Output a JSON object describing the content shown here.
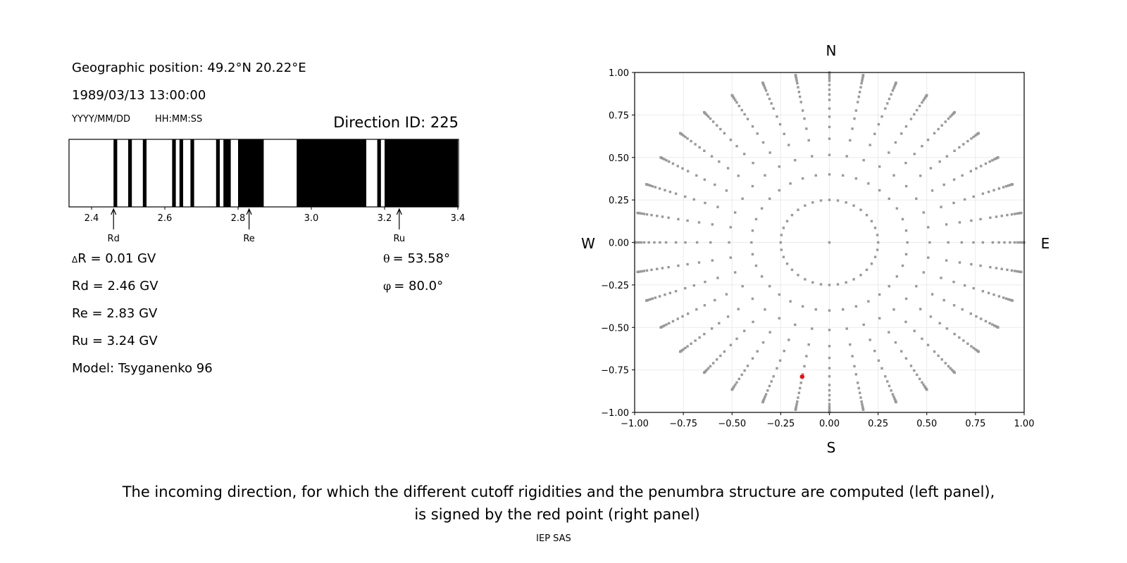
{
  "info": {
    "geo_position": "Geographic position: 49.2°N 20.22°E",
    "datetime": "1989/03/13 13:00:00",
    "date_format": "YYYY/MM/DD",
    "time_format": "HH:MM:SS",
    "direction_id": "Direction ID: 225",
    "delta_r_symbol": "Δ",
    "delta_r": "R = 0.01 GV",
    "rd": "Rd = 2.46 GV",
    "re": "Re = 2.83 GV",
    "ru": "Ru = 3.24 GV",
    "model": "Model: Tsyganenko 96",
    "theta_symbol": "θ",
    "theta": "= 53.58°",
    "phi_symbol": "φ",
    "phi": "= 80.0°"
  },
  "caption": {
    "line1": "The incoming direction, for which the different cutoff rigidities and the penumbra structure are computed (left panel),",
    "line2": "is signed by the red point (right panel)",
    "credit": "IEP SAS"
  },
  "chart_data": [
    {
      "type": "bar",
      "title": "",
      "xlabel": "",
      "xlim": [
        2.34,
        3.4
      ],
      "xticks": [
        "2.4",
        "2.6",
        "2.8",
        "3.0",
        "3.2",
        "3.4"
      ],
      "forbidden_bands_gv": [
        [
          2.46,
          2.47
        ],
        [
          2.5,
          2.51
        ],
        [
          2.54,
          2.55
        ],
        [
          2.62,
          2.63
        ],
        [
          2.64,
          2.65
        ],
        [
          2.67,
          2.68
        ],
        [
          2.74,
          2.75
        ],
        [
          2.76,
          2.78
        ],
        [
          2.8,
          2.87
        ],
        [
          2.96,
          3.15
        ],
        [
          3.18,
          3.19
        ],
        [
          3.2,
          3.4
        ]
      ],
      "markers": [
        {
          "label": "Rd",
          "value": 2.46
        },
        {
          "label": "Re",
          "value": 2.83
        },
        {
          "label": "Ru",
          "value": 3.24
        }
      ],
      "band_color": "#000000"
    },
    {
      "type": "scatter",
      "xlim": [
        -1,
        1
      ],
      "ylim": [
        -1,
        1
      ],
      "xticks": [
        "−1.00",
        "−0.75",
        "−0.50",
        "−0.25",
        "0.00",
        "0.25",
        "0.50",
        "0.75",
        "1.00"
      ],
      "yticks": [
        "−1.00",
        "−0.75",
        "−0.50",
        "−0.25",
        "0.00",
        "0.25",
        "0.50",
        "0.75",
        "1.00"
      ],
      "grid": true,
      "compass": {
        "n": "N",
        "s": "S",
        "e": "E",
        "w": "W"
      },
      "grid_points": {
        "zenith_deg": [
          0,
          14.5,
          23.6,
          31,
          37.6,
          42.8,
          47.7,
          52,
          57,
          60.5,
          64,
          68,
          72,
          75,
          78,
          81,
          84,
          87,
          90
        ],
        "azimuth_step_deg": 10
      },
      "point_color": "#999999",
      "highlight": {
        "x": -0.14,
        "y": -0.79,
        "color": "#ff0000"
      }
    }
  ]
}
